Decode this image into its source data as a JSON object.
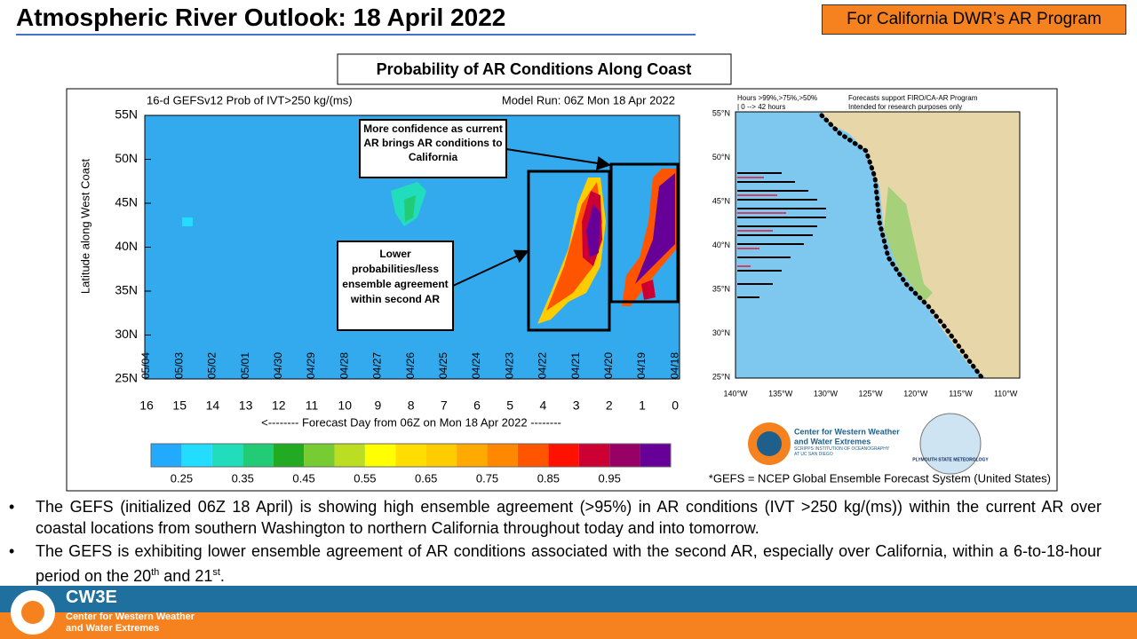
{
  "header": {
    "title": "Atmospheric River Outlook: 18 April 2022",
    "badge": "For California DWR’s AR Program"
  },
  "figure": {
    "caption": "Probability of AR Conditions Along Coast",
    "panel": {
      "title_left": "16-d GEFSv12 Prob of IVT>250 kg/(ms)",
      "title_right": "Model Run: 06Z Mon 18 Apr 2022",
      "y_label": "Latitude along West Coast",
      "y_ticks": [
        "55N",
        "50N",
        "45N",
        "40N",
        "35N",
        "30N",
        "25N"
      ],
      "dates": [
        "05/04",
        "05/03",
        "05/02",
        "05/01",
        "04/30",
        "04/29",
        "04/28",
        "04/27",
        "04/26",
        "04/25",
        "04/24",
        "04/23",
        "04/22",
        "04/21",
        "04/20",
        "04/19",
        "04/18"
      ],
      "days": [
        "16",
        "15",
        "14",
        "13",
        "12",
        "11",
        "10",
        "9",
        "8",
        "7",
        "6",
        "5",
        "4",
        "3",
        "2",
        "1",
        "0"
      ],
      "x_label": "<-------- Forecast Day from 06Z on Mon 18 Apr 2022 --------",
      "annotations": [
        "More confidence as current AR brings AR conditions to California",
        "Lower probabilities/less ensemble agreement within second AR"
      ],
      "colorbar": {
        "labels": [
          "0.25",
          "0.35",
          "0.45",
          "0.55",
          "0.65",
          "0.75",
          "0.85",
          "0.95"
        ],
        "colors": [
          "#22aaff",
          "#22ddff",
          "#22ddbb",
          "#22cc77",
          "#22aa22",
          "#77cc33",
          "#bbdd22",
          "#ffff00",
          "#ffdd00",
          "#ffcc00",
          "#ffaa00",
          "#ff8800",
          "#ff5500",
          "#ff1100",
          "#cc0033",
          "#990066",
          "#660099"
        ]
      }
    },
    "map": {
      "legend_left": [
        "Hours >99%,>75%,>50%",
        "| 0 --> 42 hours"
      ],
      "legend_right": [
        "Forecasts support FIRO/CA-AR Program",
        "Intended for research purposes only"
      ],
      "lat_ticks": [
        "55°N",
        "50°N",
        "45°N",
        "40°N",
        "35°N",
        "30°N",
        "25°N"
      ],
      "lon_ticks": [
        "140°W",
        "135°W",
        "130°W",
        "125°W",
        "120°W",
        "115°W",
        "110°W"
      ]
    },
    "logos": {
      "cw3e": [
        "Center for Western Weather",
        "and Water Extremes"
      ],
      "scripps": "SCRIPPS INSTITUTION OF OCEANOGRAPHY AT UC SAN DIEGO",
      "plymouth": "PLYMOUTH STATE METEOROLOGY"
    },
    "footnote": "*GEFS = NCEP Global Ensemble Forecast System (United States)"
  },
  "bullets": [
    [
      "The GEFS (initialized 06Z 18 April) is showing high ensemble agreement (>95%) in AR conditions (IVT >250 kg/(ms)) within the current AR over coastal locations from southern Washington to northern California throughout today and into tomorrow."
    ],
    [
      "The GEFS is exhibiting lower ensemble agreement of AR conditions associated with the second AR, especially over California, within a 6-to-18-hour period on the 20",
      "th",
      " and 21",
      "st",
      "."
    ]
  ],
  "footer": {
    "name": "CW3E",
    "lines": [
      "Center for Western Weather",
      "and Water Extremes"
    ]
  }
}
